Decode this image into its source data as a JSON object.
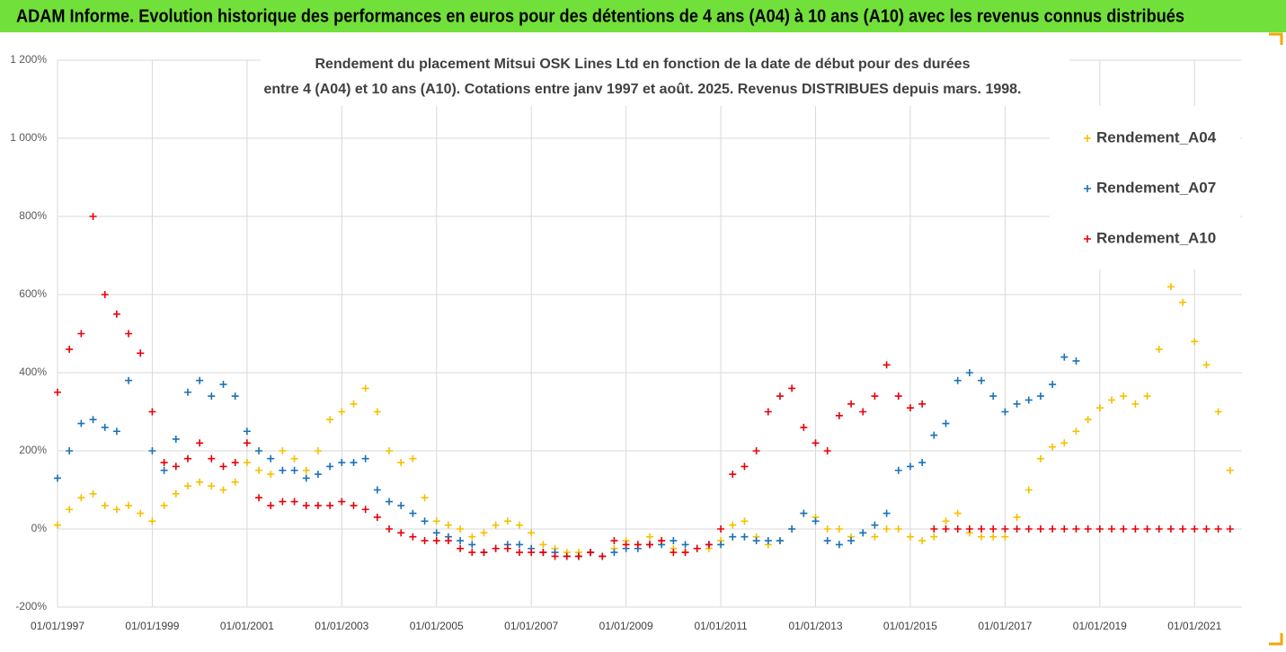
{
  "header": {
    "title": "ADAM Informe. Evolution historique des performances en euros pour des détentions de 4 ans (A04) à 10 ans (A10) avec les revenus connus distribués"
  },
  "chart_data": {
    "type": "scatter",
    "title": [
      "Rendement du placement Mitsui OSK Lines Ltd en fonction de la date de début pour des durées",
      "entre 4 (A04) et 10 ans (A10). Cotations entre janv 1997 et août. 2025. Revenus DISTRIBUES depuis mars. 1998."
    ],
    "grid": true,
    "legend": "top-right",
    "xlim": [
      "1997-01-01",
      "2022-01-01"
    ],
    "ylim": [
      -200,
      1200
    ],
    "xticks": [
      {
        "value": "1997-01-01",
        "label": "01/01/1997"
      },
      {
        "value": "1999-01-01",
        "label": "01/01/1999"
      },
      {
        "value": "2001-01-01",
        "label": "01/01/2001"
      },
      {
        "value": "2003-01-01",
        "label": "01/01/2003"
      },
      {
        "value": "2005-01-01",
        "label": "01/01/2005"
      },
      {
        "value": "2007-01-01",
        "label": "01/01/2007"
      },
      {
        "value": "2009-01-01",
        "label": "01/01/2009"
      },
      {
        "value": "2011-01-01",
        "label": "01/01/2011"
      },
      {
        "value": "2013-01-01",
        "label": "01/01/2013"
      },
      {
        "value": "2015-01-01",
        "label": "01/01/2015"
      },
      {
        "value": "2017-01-01",
        "label": "01/01/2017"
      },
      {
        "value": "2019-01-01",
        "label": "01/01/2019"
      },
      {
        "value": "2021-01-01",
        "label": "01/01/2021"
      }
    ],
    "yticks": [
      {
        "value": -200,
        "label": "-200%"
      },
      {
        "value": 0,
        "label": "0%"
      },
      {
        "value": 200,
        "label": "200%"
      },
      {
        "value": 400,
        "label": "400%"
      },
      {
        "value": 600,
        "label": "600%"
      },
      {
        "value": 800,
        "label": "800%"
      },
      {
        "value": 1000,
        "label": "1 000%"
      },
      {
        "value": 1200,
        "label": "1 200%"
      }
    ],
    "x": [
      "1997-01-01",
      "1997-04-01",
      "1997-07-01",
      "1997-10-01",
      "1998-01-01",
      "1998-04-01",
      "1998-07-01",
      "1998-10-01",
      "1999-01-01",
      "1999-04-01",
      "1999-07-01",
      "1999-10-01",
      "2000-01-01",
      "2000-04-01",
      "2000-07-01",
      "2000-10-01",
      "2001-01-01",
      "2001-04-01",
      "2001-07-01",
      "2001-10-01",
      "2002-01-01",
      "2002-04-01",
      "2002-07-01",
      "2002-10-01",
      "2003-01-01",
      "2003-04-01",
      "2003-07-01",
      "2003-10-01",
      "2004-01-01",
      "2004-04-01",
      "2004-07-01",
      "2004-10-01",
      "2005-01-01",
      "2005-04-01",
      "2005-07-01",
      "2005-10-01",
      "2006-01-01",
      "2006-04-01",
      "2006-07-01",
      "2006-10-01",
      "2007-01-01",
      "2007-04-01",
      "2007-07-01",
      "2007-10-01",
      "2008-01-01",
      "2008-04-01",
      "2008-07-01",
      "2008-10-01",
      "2009-01-01",
      "2009-04-01",
      "2009-07-01",
      "2009-10-01",
      "2010-01-01",
      "2010-04-01",
      "2010-07-01",
      "2010-10-01",
      "2011-01-01",
      "2011-04-01",
      "2011-07-01",
      "2011-10-01",
      "2012-01-01",
      "2012-04-01",
      "2012-07-01",
      "2012-10-01",
      "2013-01-01",
      "2013-04-01",
      "2013-07-01",
      "2013-10-01",
      "2014-01-01",
      "2014-04-01",
      "2014-07-01",
      "2014-10-01",
      "2015-01-01",
      "2015-04-01",
      "2015-07-01",
      "2015-10-01",
      "2016-01-01",
      "2016-04-01",
      "2016-07-01",
      "2016-10-01",
      "2017-01-01",
      "2017-04-01",
      "2017-07-01",
      "2017-10-01",
      "2018-01-01",
      "2018-04-01",
      "2018-07-01",
      "2018-10-01",
      "2019-01-01",
      "2019-04-01",
      "2019-07-01",
      "2019-10-01",
      "2020-01-01",
      "2020-04-01",
      "2020-07-01",
      "2020-10-01",
      "2021-01-01",
      "2021-04-01",
      "2021-07-01",
      "2021-10-01"
    ],
    "series": [
      {
        "name": "Rendement_A04",
        "color": "#f5c000",
        "values": [
          10,
          50,
          80,
          90,
          60,
          50,
          60,
          40,
          20,
          60,
          90,
          110,
          120,
          110,
          100,
          120,
          170,
          150,
          140,
          200,
          180,
          150,
          200,
          280,
          300,
          320,
          360,
          300,
          200,
          170,
          180,
          80,
          20,
          10,
          0,
          -20,
          -10,
          10,
          20,
          10,
          -10,
          -40,
          -50,
          -60,
          -60,
          -60,
          -70,
          -50,
          -30,
          -40,
          -20,
          -30,
          -50,
          -60,
          -50,
          -50,
          -30,
          10,
          20,
          -20,
          -40,
          -30,
          0,
          40,
          30,
          0,
          0,
          -20,
          -10,
          -20,
          0,
          0,
          -20,
          -30,
          -20,
          20,
          40,
          -10,
          -20,
          -20,
          -20,
          30,
          100,
          180,
          210,
          220,
          250,
          280,
          310,
          330,
          340,
          320,
          340,
          460,
          620,
          580,
          480,
          420,
          300,
          150
        ]
      },
      {
        "name": "Rendement_A07",
        "color": "#1a72b8",
        "values": [
          130,
          200,
          270,
          280,
          260,
          250,
          380,
          450,
          200,
          150,
          230,
          350,
          380,
          340,
          370,
          340,
          250,
          200,
          180,
          150,
          150,
          130,
          140,
          160,
          170,
          170,
          180,
          100,
          70,
          60,
          40,
          20,
          -10,
          -20,
          -30,
          -40,
          -60,
          -50,
          -40,
          -40,
          -50,
          -60,
          -60,
          -70,
          -70,
          -60,
          -70,
          -60,
          -50,
          -50,
          -40,
          -40,
          -30,
          -40,
          -50,
          -40,
          -40,
          -20,
          -20,
          -30,
          -30,
          -30,
          0,
          40,
          20,
          -30,
          -40,
          -30,
          -10,
          10,
          40,
          150,
          160,
          170,
          240,
          270,
          380,
          400,
          380,
          340,
          300,
          320,
          330,
          340,
          370,
          440,
          430,
          null,
          null,
          null,
          null,
          null,
          null,
          null,
          null,
          null,
          null,
          null,
          null,
          null
        ]
      },
      {
        "name": "Rendement_A10",
        "color": "#e8000a",
        "values": [
          350,
          460,
          500,
          800,
          600,
          550,
          500,
          450,
          300,
          170,
          160,
          180,
          220,
          180,
          160,
          170,
          220,
          80,
          60,
          70,
          70,
          60,
          60,
          60,
          70,
          60,
          50,
          30,
          0,
          -10,
          -20,
          -30,
          -30,
          -30,
          -50,
          -60,
          -60,
          -50,
          -50,
          -60,
          -60,
          -60,
          -70,
          -70,
          -70,
          -60,
          -70,
          -30,
          -40,
          -40,
          -40,
          -30,
          -60,
          -60,
          -50,
          -40,
          0,
          140,
          160,
          200,
          300,
          340,
          360,
          260,
          220,
          200,
          290,
          320,
          300,
          340,
          420,
          340,
          310,
          320,
          0,
          0,
          0,
          0,
          0,
          0,
          0,
          0,
          0,
          0,
          0,
          0,
          0,
          0,
          0,
          0,
          0,
          0,
          0,
          0,
          0,
          0,
          0,
          0,
          0,
          0
        ]
      }
    ]
  }
}
